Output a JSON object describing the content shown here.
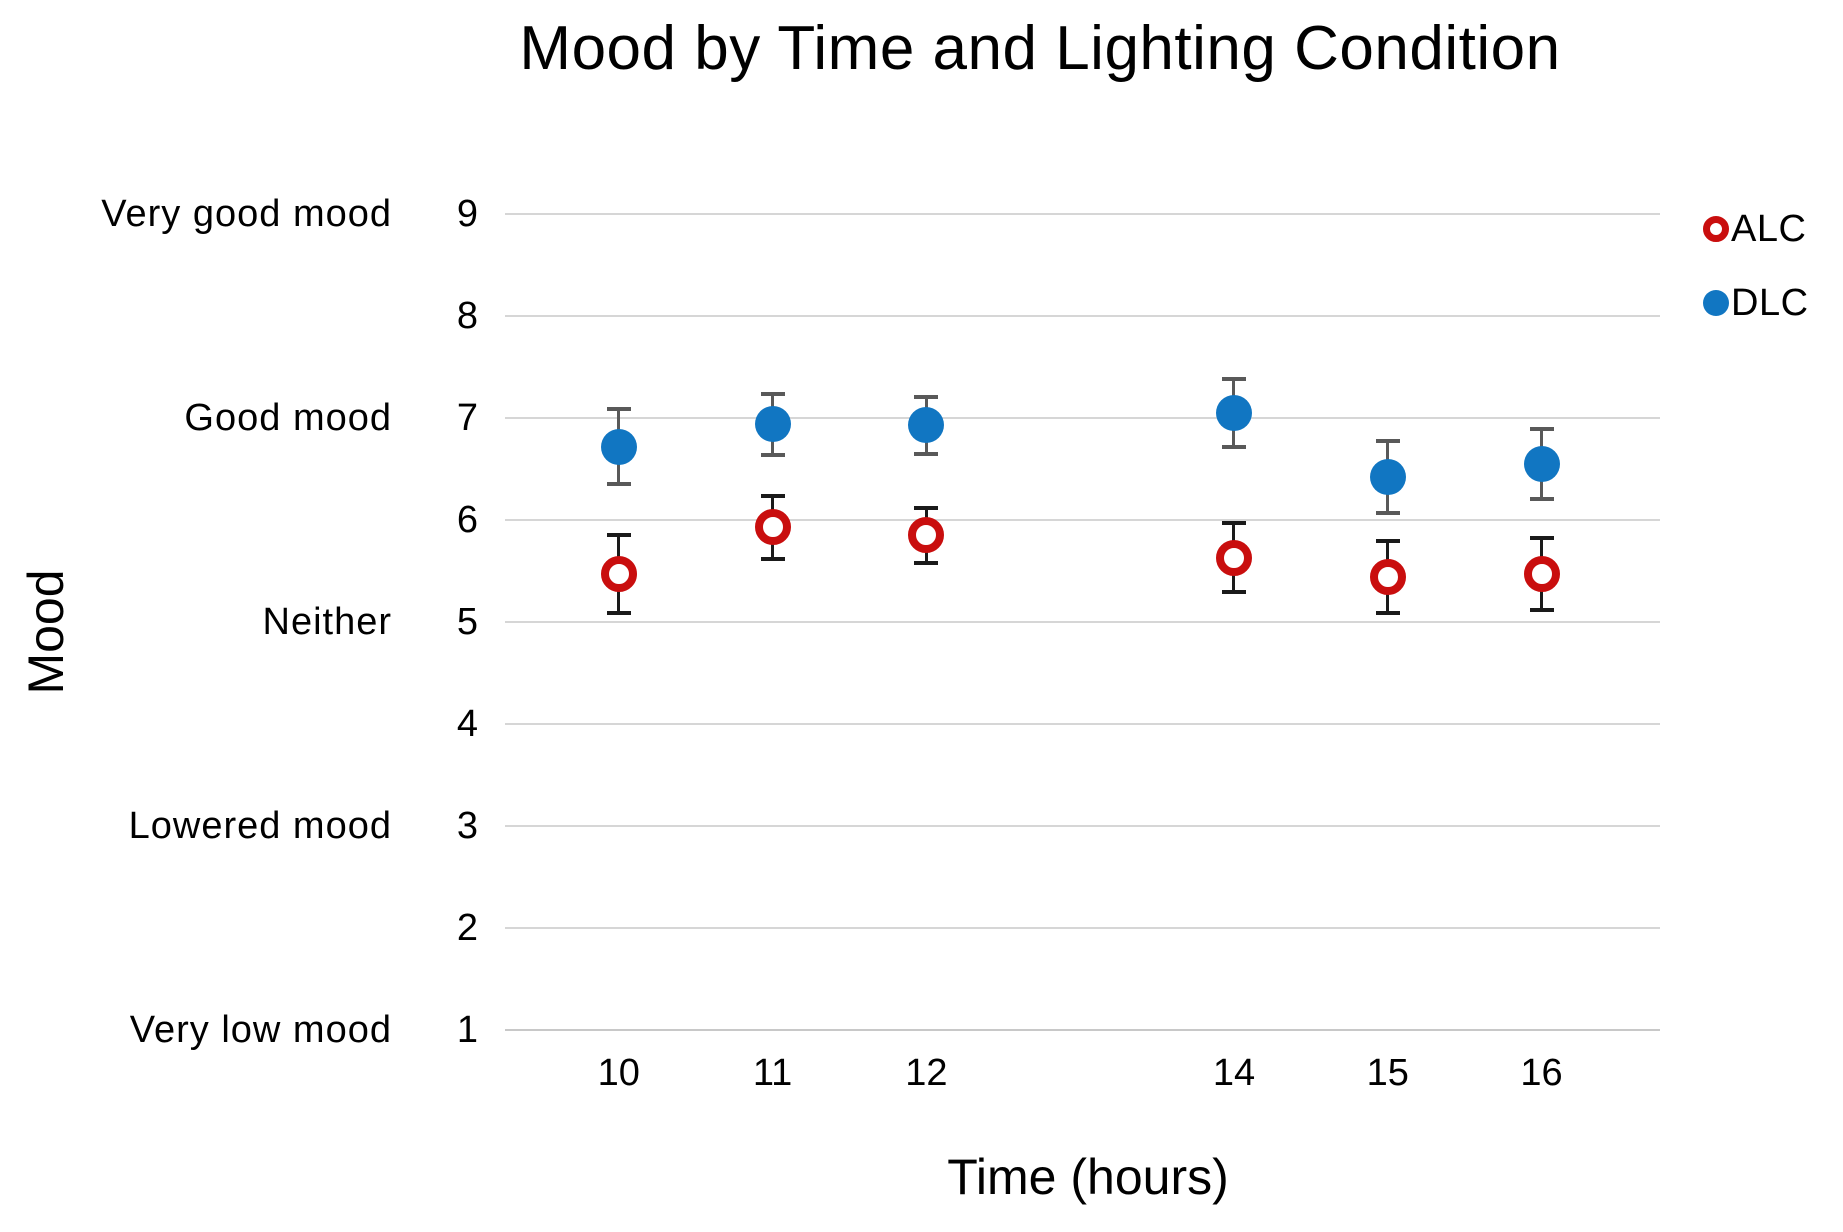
{
  "chart_data": {
    "type": "scatter",
    "title": "Mood by Time and Lighting Condition",
    "xlabel": "Time (hours)",
    "ylabel": "Mood",
    "xlim": [
      9.26,
      16.77
    ],
    "ylim": [
      1,
      9
    ],
    "x_ticks": [
      10,
      11,
      12,
      14,
      15,
      16
    ],
    "y_ticks": [
      1,
      2,
      3,
      4,
      5,
      6,
      7,
      8,
      9
    ],
    "y_category_labels": [
      {
        "value": 9,
        "label": "Very good mood"
      },
      {
        "value": 7,
        "label": "Good mood"
      },
      {
        "value": 5,
        "label": "Neither"
      },
      {
        "value": 3,
        "label": "Lowered mood"
      },
      {
        "value": 1,
        "label": "Very low mood"
      }
    ],
    "grid": "horizontal",
    "legend_position": "right",
    "colors": {
      "gridline": "#D6D6D6",
      "axis_line": "#C8C8C8",
      "text": "#000000"
    },
    "series": [
      {
        "name": "ALC",
        "marker": "open-circle",
        "color": "#C90E0E",
        "error_color": "#1A1A1A",
        "x": [
          10,
          11,
          12,
          14,
          15,
          16
        ],
        "y": [
          5.47,
          5.93,
          5.85,
          5.63,
          5.44,
          5.47
        ],
        "error": [
          0.38,
          0.31,
          0.27,
          0.34,
          0.35,
          0.35
        ]
      },
      {
        "name": "DLC",
        "marker": "filled-circle",
        "color": "#1176C2",
        "error_color": "#595959",
        "x": [
          10,
          11,
          12,
          14,
          15,
          16
        ],
        "y": [
          6.72,
          6.94,
          6.93,
          7.05,
          6.42,
          6.55
        ],
        "error": [
          0.37,
          0.3,
          0.28,
          0.33,
          0.35,
          0.34
        ]
      }
    ]
  }
}
